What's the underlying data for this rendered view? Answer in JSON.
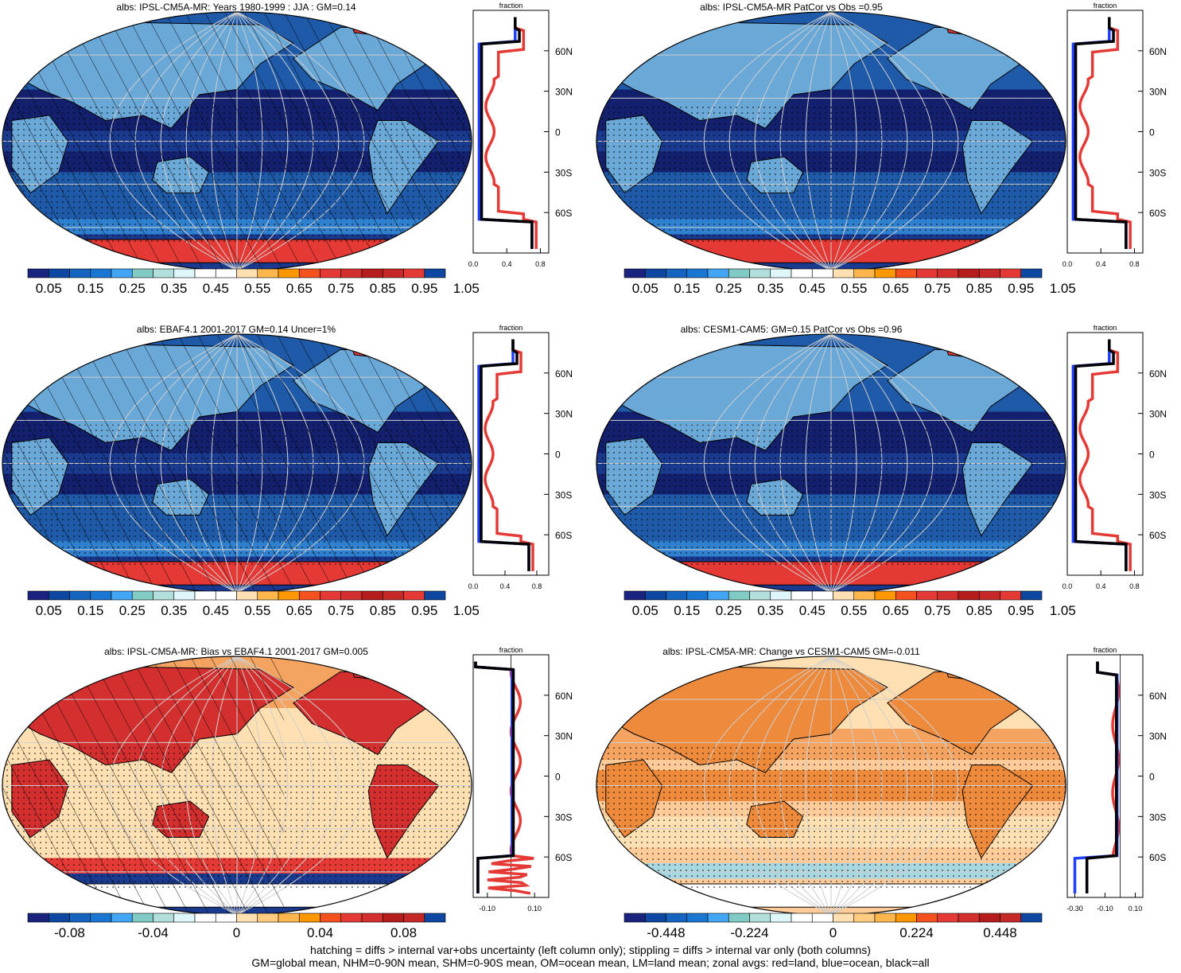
{
  "panels": [
    {
      "title": "albs: IPSL-CM5A-MR: Years 1980-1999 : JJA : GM=0.14",
      "map": "abs",
      "hatch": "full",
      "colorbar": [
        "0.05",
        "0.15",
        "0.25",
        "0.35",
        "0.45",
        "0.55",
        "0.65",
        "0.75",
        "0.85",
        "0.95",
        "1.05"
      ],
      "zonal": {
        "title": "fraction",
        "xticks": [
          "0.0",
          "0.4",
          "0.8"
        ],
        "xmin": 0,
        "xmax": 0.9,
        "mode": "abs"
      }
    },
    {
      "title": "albs: IPSL-CM5A-MR PatCor vs Obs =0.95",
      "map": "abs",
      "hatch": "none",
      "colorbar": [
        "0.05",
        "0.15",
        "0.25",
        "0.35",
        "0.45",
        "0.55",
        "0.65",
        "0.75",
        "0.85",
        "0.95",
        "1.05"
      ],
      "zonal": {
        "title": "fraction",
        "xticks": [
          "0.0",
          "0.4",
          "0.8"
        ],
        "xmin": 0,
        "xmax": 0.9,
        "mode": "abs"
      }
    },
    {
      "title": "albs: EBAF4.1 2001-2017 GM=0.14 Uncer=1%",
      "map": "obs",
      "hatch": "full",
      "colorbar": [
        "0.05",
        "0.15",
        "0.25",
        "0.35",
        "0.45",
        "0.55",
        "0.65",
        "0.75",
        "0.85",
        "0.95",
        "1.05"
      ],
      "zonal": {
        "title": "fraction",
        "xticks": [
          "0.0",
          "0.4",
          "0.8"
        ],
        "xmin": 0,
        "xmax": 0.95,
        "mode": "abs"
      }
    },
    {
      "title": "albs: CESM1-CAM5: GM=0.15 PatCor vs Obs =0.96",
      "map": "abs",
      "hatch": "none",
      "colorbar": [
        "0.05",
        "0.15",
        "0.25",
        "0.35",
        "0.45",
        "0.55",
        "0.65",
        "0.75",
        "0.85",
        "0.95",
        "1.05"
      ],
      "zonal": {
        "title": "fraction",
        "xticks": [
          "0.0",
          "0.4",
          "0.8"
        ],
        "xmin": 0,
        "xmax": 0.9,
        "mode": "abs"
      }
    },
    {
      "title": "albs: IPSL-CM5A-MR: Bias vs EBAF4.1 2001-2017 GM=0.005",
      "map": "bias",
      "hatch": "partial",
      "colorbar": [
        "-0.08",
        "-0.04",
        "0",
        "0.04",
        "0.08"
      ],
      "zonal": {
        "title": "fraction",
        "xticks": [
          "-0.10",
          "0.10"
        ],
        "xmin": -0.16,
        "xmax": 0.16,
        "mode": "bias"
      }
    },
    {
      "title": "albs: IPSL-CM5A-MR: Change vs CESM1-CAM5 GM=-0.011",
      "map": "change",
      "hatch": "none",
      "colorbar": [
        "-0.448",
        "-0.224",
        "0",
        "0.224",
        "0.448"
      ],
      "zonal": {
        "title": "fraction",
        "xticks": [
          "-0.30",
          "-0.10",
          "0.10"
        ],
        "xmin": -0.35,
        "xmax": 0.15,
        "mode": "change"
      }
    }
  ],
  "lat_labels": [
    "60N",
    "30N",
    "0",
    "30S",
    "60S"
  ],
  "footer": {
    "line1": "hatching = diffs > internal var+obs uncertainty (left column only); stippling = diffs > internal var only (both columns)",
    "line2": "GM=global mean, NHM=0-90N mean, SHM=0-90S mean, OM=ocean mean, LM=land mean; zonal avgs: red=land, blue=ocean, black=all"
  },
  "colors": {
    "abs_scale": [
      "#1a237e",
      "#0d47a1",
      "#1565c0",
      "#1976d2",
      "#42a5f5",
      "#80cbc4",
      "#b2dfdb",
      "#e0f7fa",
      "#ffffff",
      "#ffffff",
      "#ffe0b2",
      "#ffb74d",
      "#ff9800",
      "#f4511e",
      "#e53935",
      "#d32f2f",
      "#b71c1c",
      "#c62828",
      "#e53935",
      "#0d47a1"
    ],
    "diff_scale": [
      "#1a237e",
      "#0d47a1",
      "#1565c0",
      "#1976d2",
      "#42a5f5",
      "#80cbc4",
      "#b2dfdb",
      "#e0f7fa",
      "#ffffff",
      "#ffffff",
      "#ffe0b2",
      "#ffcc80",
      "#ffb74d",
      "#ff9800",
      "#f4511e",
      "#e53935",
      "#d32f2f",
      "#b71c1c",
      "#c62828",
      "#0d47a1"
    ],
    "land": "#e53935",
    "ocean": "#1f3fff",
    "all": "#000000"
  }
}
